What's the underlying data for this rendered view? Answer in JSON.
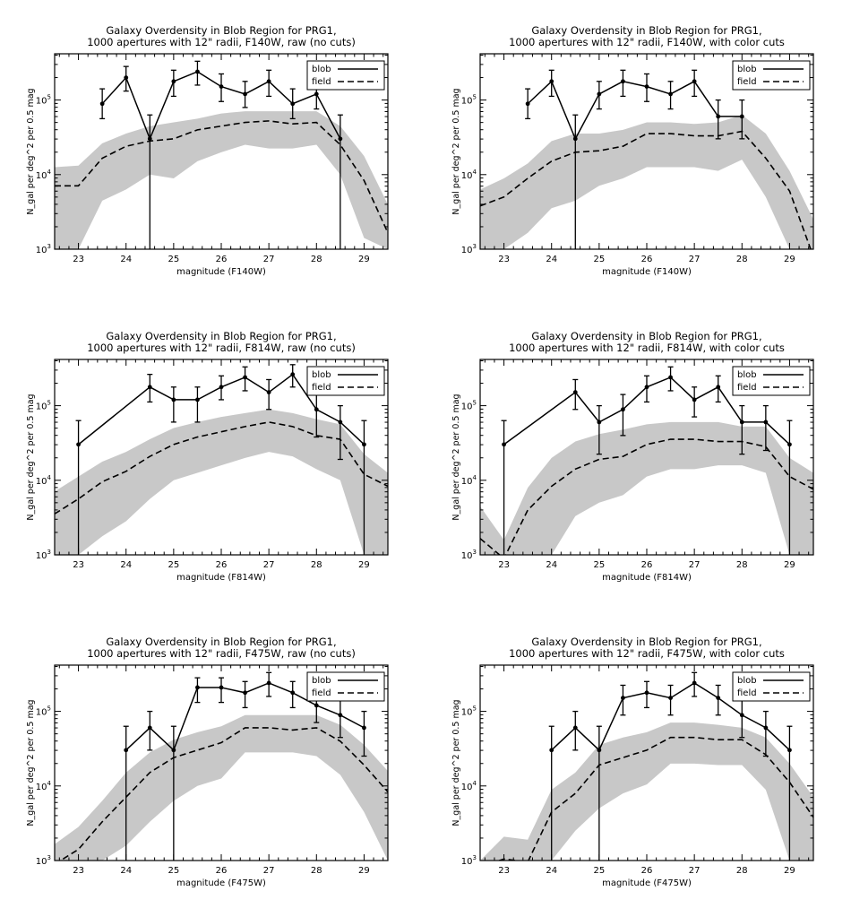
{
  "chart_data": [
    {
      "type": "line",
      "title_line1": "Galaxy Overdensity in Blob Region for PRG1,",
      "title_line2": "1000 apertures with 12\" radii, F140W, raw (no cuts)",
      "xlabel": "magnitude (F140W)",
      "ylabel": "N_gal per deg^2 per 0.5 mag",
      "xlim": [
        22.5,
        29.5
      ],
      "ylim_log10": [
        3,
        5
      ],
      "x_ticks": [
        23,
        24,
        25,
        26,
        27,
        28,
        29
      ],
      "y_tick_labels": [
        "10^3",
        "10^4",
        "10^5"
      ],
      "legend": {
        "position": "top-right",
        "entries": [
          "blob",
          "field"
        ]
      },
      "blob_x": [
        23.5,
        24.0,
        24.5,
        25.0,
        25.5,
        26.0,
        26.5,
        27.0,
        27.5,
        28.0,
        28.5
      ],
      "blob_y_log10": [
        4.95,
        5.3,
        4.48,
        5.25,
        5.38,
        5.18,
        5.08,
        5.25,
        4.95,
        5.08,
        4.48
      ],
      "blob_err_low_log10": [
        4.75,
        5.12,
        3.0,
        5.05,
        5.2,
        4.98,
        4.9,
        5.05,
        4.75,
        4.88,
        3.0
      ],
      "blob_err_high_log10": [
        5.15,
        5.45,
        4.8,
        5.4,
        5.52,
        5.35,
        5.25,
        5.4,
        5.15,
        5.25,
        4.8
      ],
      "field_x": [
        22.5,
        23.0,
        23.5,
        24.0,
        24.5,
        25.0,
        25.5,
        26.0,
        26.5,
        27.0,
        27.5,
        28.0,
        28.5,
        29.0,
        29.5
      ],
      "field_y_log10": [
        3.85,
        3.85,
        4.22,
        4.38,
        4.45,
        4.48,
        4.6,
        4.65,
        4.7,
        4.72,
        4.68,
        4.7,
        4.4,
        3.92,
        3.22
      ],
      "field_band_low_log10": [
        3.0,
        3.0,
        3.65,
        3.8,
        4.0,
        3.95,
        4.18,
        4.3,
        4.4,
        4.35,
        4.35,
        4.4,
        4.0,
        3.15,
        3.0
      ],
      "field_band_high_log10": [
        4.1,
        4.12,
        4.42,
        4.55,
        4.65,
        4.7,
        4.75,
        4.82,
        4.85,
        4.85,
        4.85,
        4.85,
        4.65,
        4.25,
        3.6
      ]
    },
    {
      "type": "line",
      "title_line1": "Galaxy Overdensity in Blob Region for PRG1,",
      "title_line2": "1000 apertures with 12\" radii, F140W, with color cuts",
      "xlabel": "magnitude (F140W)",
      "ylabel": "N_gal per deg^2 per 0.5 mag",
      "xlim": [
        22.5,
        29.5
      ],
      "ylim_log10": [
        3,
        5
      ],
      "x_ticks": [
        23,
        24,
        25,
        26,
        27,
        28,
        29
      ],
      "y_tick_labels": [
        "10^3",
        "10^4",
        "10^5"
      ],
      "legend": {
        "position": "top-right",
        "entries": [
          "blob",
          "field"
        ]
      },
      "blob_x": [
        23.5,
        24.0,
        24.5,
        25.0,
        25.5,
        26.0,
        26.5,
        27.0,
        27.5,
        28.0
      ],
      "blob_y_log10": [
        4.95,
        5.25,
        4.48,
        5.08,
        5.25,
        5.18,
        5.08,
        5.25,
        4.78,
        4.78
      ],
      "blob_err_low_log10": [
        4.75,
        5.05,
        3.0,
        4.88,
        5.05,
        4.98,
        4.88,
        5.05,
        4.48,
        4.48
      ],
      "blob_err_high_log10": [
        5.15,
        5.4,
        4.8,
        5.25,
        5.4,
        5.35,
        5.25,
        5.4,
        5.0,
        5.0
      ],
      "field_x": [
        22.5,
        23.0,
        23.5,
        24.0,
        24.5,
        25.0,
        25.5,
        26.0,
        26.5,
        27.0,
        27.5,
        28.0,
        28.5,
        29.0,
        29.5
      ],
      "field_y_log10": [
        3.58,
        3.7,
        3.95,
        4.18,
        4.3,
        4.32,
        4.38,
        4.55,
        4.55,
        4.52,
        4.52,
        4.58,
        4.22,
        3.78,
        2.9
      ],
      "field_band_low_log10": [
        3.0,
        3.0,
        3.22,
        3.55,
        3.65,
        3.85,
        3.95,
        4.1,
        4.1,
        4.1,
        4.05,
        4.2,
        3.7,
        3.0,
        3.0
      ],
      "field_band_high_log10": [
        3.8,
        3.95,
        4.15,
        4.45,
        4.55,
        4.55,
        4.6,
        4.7,
        4.7,
        4.68,
        4.7,
        4.8,
        4.55,
        4.05,
        3.4
      ]
    },
    {
      "type": "line",
      "title_line1": "Galaxy Overdensity in Blob Region for PRG1,",
      "title_line2": "1000 apertures with 12\" radii, F814W, raw (no cuts)",
      "xlabel": "magnitude (F814W)",
      "ylabel": "N_gal per deg^2 per 0.5 mag",
      "xlim": [
        22.5,
        29.5
      ],
      "ylim_log10": [
        3,
        5
      ],
      "x_ticks": [
        23,
        24,
        25,
        26,
        27,
        28,
        29
      ],
      "y_tick_labels": [
        "10^3",
        "10^4",
        "10^5"
      ],
      "legend": {
        "position": "top-right",
        "entries": [
          "blob",
          "field"
        ]
      },
      "blob_x": [
        23.0,
        24.5,
        25.0,
        25.5,
        26.0,
        26.5,
        27.0,
        27.5,
        28.0,
        28.5,
        29.0
      ],
      "blob_y_log10": [
        4.48,
        5.25,
        5.08,
        5.08,
        5.25,
        5.38,
        5.18,
        5.42,
        4.95,
        4.78,
        4.48
      ],
      "blob_err_low_log10": [
        3.0,
        5.05,
        4.78,
        4.78,
        5.08,
        5.2,
        4.95,
        5.25,
        4.58,
        4.28,
        3.0
      ],
      "blob_err_high_log10": [
        4.8,
        5.42,
        5.25,
        5.25,
        5.4,
        5.52,
        5.35,
        5.55,
        5.15,
        5.0,
        4.8
      ],
      "field_x": [
        22.5,
        23.0,
        23.5,
        24.0,
        24.5,
        25.0,
        25.5,
        26.0,
        26.5,
        27.0,
        27.5,
        28.0,
        28.5,
        29.0,
        29.5
      ],
      "field_y_log10": [
        3.55,
        3.75,
        3.98,
        4.12,
        4.32,
        4.48,
        4.58,
        4.65,
        4.72,
        4.78,
        4.72,
        4.6,
        4.55,
        4.08,
        3.92
      ],
      "field_band_low_log10": [
        3.0,
        3.0,
        3.25,
        3.45,
        3.75,
        4.0,
        4.1,
        4.2,
        4.3,
        4.38,
        4.32,
        4.15,
        4.0,
        3.0,
        3.0
      ],
      "field_band_high_log10": [
        3.85,
        4.05,
        4.25,
        4.38,
        4.55,
        4.7,
        4.78,
        4.85,
        4.9,
        4.95,
        4.9,
        4.82,
        4.75,
        4.35,
        4.1
      ]
    },
    {
      "type": "line",
      "title_line1": "Galaxy Overdensity in Blob Region for PRG1,",
      "title_line2": "1000 apertures with 12\" radii, F814W, with color cuts",
      "xlabel": "magnitude (F814W)",
      "ylabel": "N_gal per deg^2 per 0.5 mag",
      "xlim": [
        22.5,
        29.5
      ],
      "ylim_log10": [
        3,
        5
      ],
      "x_ticks": [
        23,
        24,
        25,
        26,
        27,
        28,
        29
      ],
      "y_tick_labels": [
        "10^3",
        "10^4",
        "10^5"
      ],
      "legend": {
        "position": "top-right",
        "entries": [
          "blob",
          "field"
        ]
      },
      "blob_x": [
        23.0,
        24.5,
        25.0,
        25.5,
        26.0,
        26.5,
        27.0,
        27.5,
        28.0,
        28.5,
        29.0
      ],
      "blob_y_log10": [
        4.48,
        5.18,
        4.78,
        4.95,
        5.25,
        5.38,
        5.08,
        5.25,
        4.78,
        4.78,
        4.48
      ],
      "blob_err_low_log10": [
        3.0,
        4.95,
        4.35,
        4.6,
        5.05,
        5.2,
        4.85,
        5.05,
        4.35,
        4.4,
        3.0
      ],
      "blob_err_high_log10": [
        4.8,
        5.35,
        5.0,
        5.15,
        5.4,
        5.52,
        5.25,
        5.4,
        5.0,
        5.0,
        4.8
      ],
      "field_x": [
        22.5,
        23.0,
        23.5,
        24.0,
        24.5,
        25.0,
        25.5,
        26.0,
        26.5,
        27.0,
        27.5,
        28.0,
        28.5,
        29.0,
        29.5
      ],
      "field_y_log10": [
        3.22,
        2.95,
        3.6,
        3.92,
        4.15,
        4.28,
        4.32,
        4.48,
        4.55,
        4.55,
        4.52,
        4.52,
        4.45,
        4.05,
        3.88
      ],
      "field_band_low_log10": [
        3.0,
        3.0,
        3.0,
        3.0,
        3.52,
        3.7,
        3.8,
        4.05,
        4.15,
        4.15,
        4.2,
        4.2,
        4.1,
        3.0,
        3.0
      ],
      "field_band_high_log10": [
        3.65,
        3.2,
        3.9,
        4.3,
        4.52,
        4.62,
        4.68,
        4.75,
        4.78,
        4.78,
        4.78,
        4.72,
        4.72,
        4.3,
        4.1
      ]
    },
    {
      "type": "line",
      "title_line1": "Galaxy Overdensity in Blob Region for PRG1,",
      "title_line2": "1000 apertures with 12\" radii, F475W, raw (no cuts)",
      "xlabel": "magnitude (F475W)",
      "ylabel": "N_gal per deg^2 per 0.5 mag",
      "xlim": [
        22.5,
        29.5
      ],
      "ylim_log10": [
        3,
        5
      ],
      "x_ticks": [
        23,
        24,
        25,
        26,
        27,
        28,
        29
      ],
      "y_tick_labels": [
        "10^3",
        "10^4",
        "10^5"
      ],
      "legend": {
        "position": "top-right",
        "entries": [
          "blob",
          "field"
        ]
      },
      "blob_x": [
        24.0,
        24.5,
        25.0,
        25.5,
        26.0,
        26.5,
        27.0,
        27.5,
        28.0,
        28.5,
        29.0
      ],
      "blob_y_log10": [
        4.48,
        4.78,
        4.48,
        5.32,
        5.32,
        5.25,
        5.38,
        5.25,
        5.08,
        4.95,
        4.78
      ],
      "blob_err_low_log10": [
        3.0,
        4.48,
        3.0,
        5.12,
        5.12,
        5.05,
        5.2,
        5.05,
        4.85,
        4.65,
        4.4
      ],
      "blob_err_high_log10": [
        4.8,
        5.0,
        4.8,
        5.45,
        5.45,
        5.4,
        5.52,
        5.4,
        5.25,
        5.15,
        5.0
      ],
      "field_x": [
        22.5,
        23.0,
        23.5,
        24.0,
        24.5,
        25.0,
        25.5,
        26.0,
        26.5,
        27.0,
        27.5,
        28.0,
        28.5,
        29.0,
        29.5
      ],
      "field_y_log10": [
        2.95,
        3.15,
        3.52,
        3.85,
        4.18,
        4.38,
        4.48,
        4.58,
        4.78,
        4.78,
        4.75,
        4.78,
        4.6,
        4.28,
        3.92
      ],
      "field_band_low_log10": [
        3.0,
        3.0,
        3.0,
        3.2,
        3.52,
        3.8,
        4.0,
        4.1,
        4.45,
        4.45,
        4.45,
        4.4,
        4.15,
        3.65,
        3.0
      ],
      "field_band_high_log10": [
        3.22,
        3.45,
        3.8,
        4.18,
        4.45,
        4.62,
        4.72,
        4.8,
        4.95,
        4.95,
        4.95,
        4.95,
        4.82,
        4.55,
        4.2
      ]
    },
    {
      "type": "line",
      "title_line1": "Galaxy Overdensity in Blob Region for PRG1,",
      "title_line2": "1000 apertures with 12\" radii, F475W, with color cuts",
      "xlabel": "magnitude (F475W)",
      "ylabel": "N_gal per deg^2 per 0.5 mag",
      "xlim": [
        22.5,
        29.5
      ],
      "ylim_log10": [
        3,
        5
      ],
      "x_ticks": [
        23,
        24,
        25,
        26,
        27,
        28,
        29
      ],
      "y_tick_labels": [
        "10^3",
        "10^4",
        "10^5"
      ],
      "legend": {
        "position": "top-right",
        "entries": [
          "blob",
          "field"
        ]
      },
      "blob_x": [
        24.0,
        24.5,
        25.0,
        25.5,
        26.0,
        26.5,
        27.0,
        27.5,
        28.0,
        28.5,
        29.0
      ],
      "blob_y_log10": [
        4.48,
        4.78,
        4.48,
        5.18,
        5.25,
        5.18,
        5.38,
        5.18,
        4.95,
        4.78,
        4.48
      ],
      "blob_err_low_log10": [
        3.0,
        4.48,
        3.0,
        4.95,
        5.05,
        4.95,
        5.2,
        4.95,
        4.65,
        4.4,
        3.0
      ],
      "blob_err_high_log10": [
        4.8,
        5.0,
        4.8,
        5.35,
        5.4,
        5.35,
        5.52,
        5.35,
        5.15,
        5.0,
        4.8
      ],
      "field_x": [
        22.5,
        23.0,
        23.5,
        24.0,
        24.5,
        25.0,
        25.5,
        26.0,
        26.5,
        27.0,
        27.5,
        28.0,
        28.5,
        29.0,
        29.5
      ],
      "field_y_log10": [
        2.92,
        3.02,
        2.98,
        3.65,
        3.9,
        4.28,
        4.38,
        4.48,
        4.65,
        4.65,
        4.62,
        4.62,
        4.42,
        4.05,
        3.58
      ],
      "field_band_low_log10": [
        3.0,
        3.0,
        3.0,
        3.0,
        3.4,
        3.7,
        3.9,
        4.02,
        4.3,
        4.3,
        4.28,
        4.28,
        3.95,
        3.0,
        3.0
      ],
      "field_band_high_log10": [
        3.0,
        3.32,
        3.28,
        3.95,
        4.18,
        4.55,
        4.65,
        4.72,
        4.85,
        4.85,
        4.82,
        4.78,
        4.65,
        4.3,
        3.85
      ]
    }
  ],
  "colors": {
    "band": "#c8c8c8",
    "line": "#000000",
    "background": "#ffffff"
  }
}
